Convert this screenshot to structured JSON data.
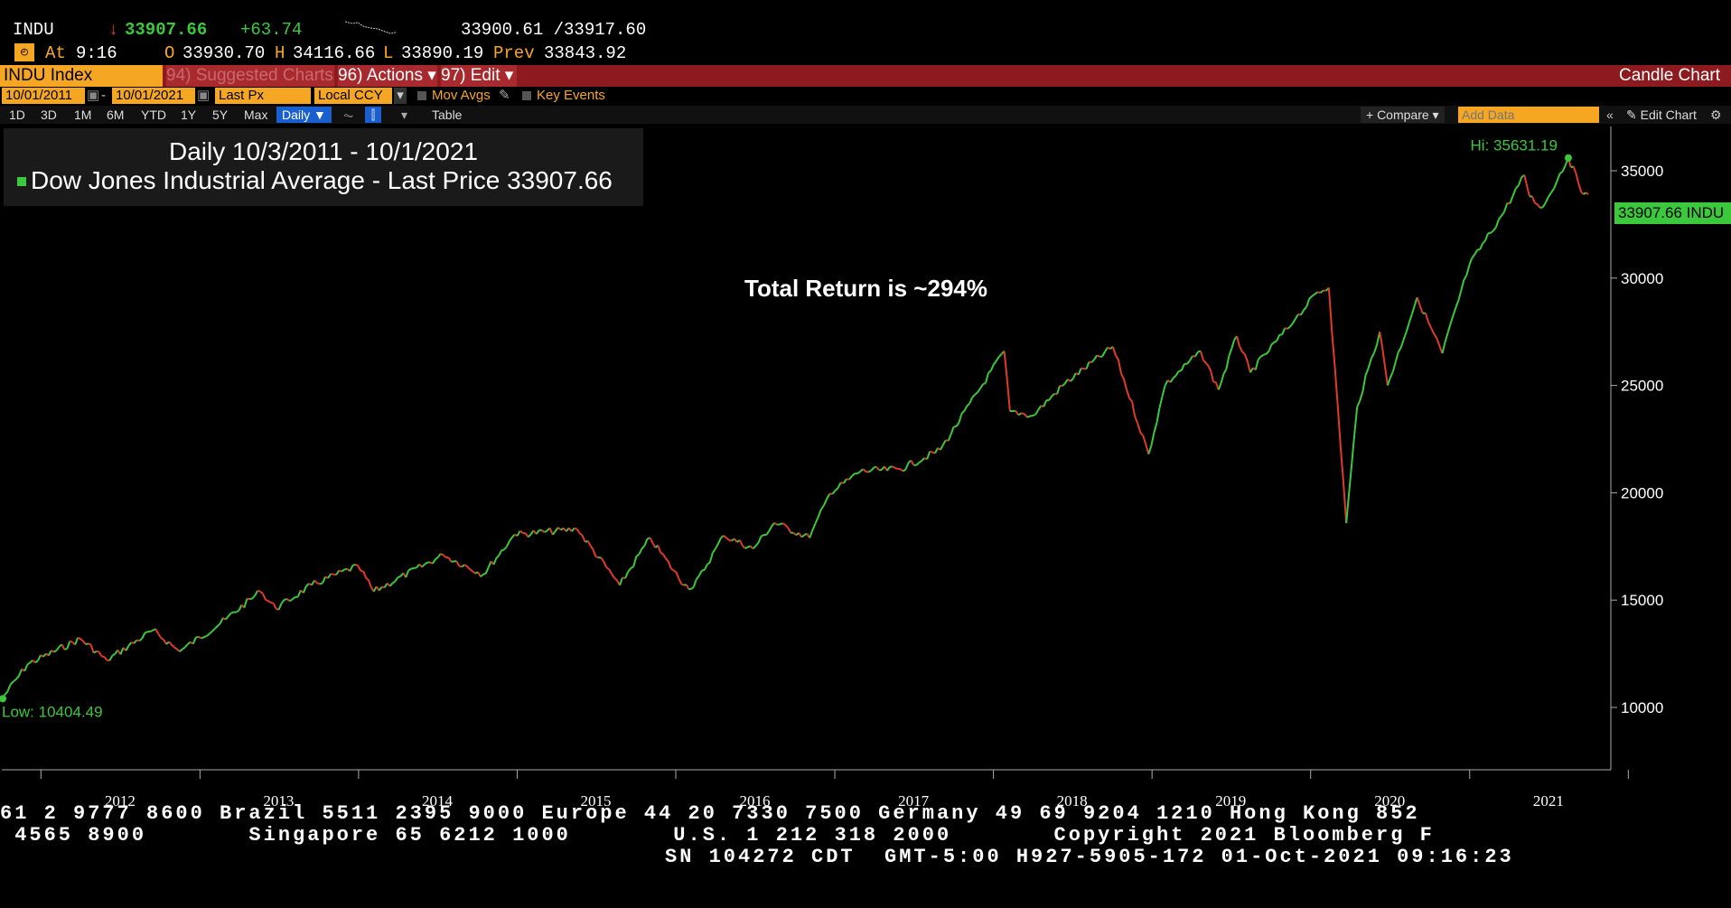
{
  "quote": {
    "ticker": "INDU",
    "last": "33907.66",
    "change": "+63.74",
    "bid_ask": "33900.61 /33917.60",
    "time_label": "At",
    "time": "9:16",
    "open_label": "O",
    "open": "33930.70",
    "high_label": "H",
    "high": "34116.66",
    "low_label": "L",
    "low": "33890.19",
    "prev_label": "Prev",
    "prev": "33843.92"
  },
  "menubar": {
    "security": "INDU Index",
    "suggested": "94) Suggested Charts",
    "actions": "96) Actions ▾",
    "edit": "97) Edit ▾",
    "chart_type": "Candle Chart"
  },
  "settings": {
    "start_date": "10/01/2011",
    "end_date": "10/01/2021",
    "field": "Last Px",
    "currency": "Local CCY",
    "mov_avgs": "Mov Avgs",
    "key_events": "Key Events"
  },
  "periods": {
    "buttons": [
      "1D",
      "3D",
      "1M",
      "6M",
      "YTD",
      "1Y",
      "5Y",
      "Max"
    ],
    "frequency": "Daily ▼",
    "table": "Table",
    "compare": "+ Compare ▾",
    "add_data_placeholder": "Add Data",
    "edit_chart": "Edit Chart"
  },
  "legend": {
    "title": "Daily 10/3/2011 - 10/1/2021",
    "series": "Dow Jones Industrial Average - Last Price 33907.66"
  },
  "annotation": "Total Return is ~294%",
  "colors": {
    "up": "#3cc83c",
    "down": "#e03a2a",
    "accent": "#f5a623",
    "menubar": "#8c1a1f"
  },
  "chart_data": {
    "type": "line",
    "title": "Daily 10/3/2011 - 10/1/2021",
    "series": [
      {
        "name": "Dow Jones Industrial Average - Last Price",
        "x": [
          "2011-10-03",
          "2011-12-01",
          "2012-04-01",
          "2012-06-01",
          "2012-09-15",
          "2012-11-15",
          "2013-03-01",
          "2013-05-20",
          "2013-06-25",
          "2013-09-15",
          "2013-12-31",
          "2014-02-05",
          "2014-07-15",
          "2014-10-15",
          "2014-12-26",
          "2015-05-19",
          "2015-08-25",
          "2015-11-03",
          "2016-01-20",
          "2016-02-11",
          "2016-04-20",
          "2016-06-27",
          "2016-08-15",
          "2016-11-04",
          "2016-12-20",
          "2017-03-01",
          "2017-06-01",
          "2017-09-01",
          "2018-01-26",
          "2018-02-08",
          "2018-04-02",
          "2018-06-15",
          "2018-10-03",
          "2018-12-24",
          "2019-01-31",
          "2019-04-23",
          "2019-06-03",
          "2019-07-15",
          "2019-08-15",
          "2019-11-27",
          "2020-01-17",
          "2020-02-12",
          "2020-03-23",
          "2020-04-17",
          "2020-06-08",
          "2020-06-26",
          "2020-09-02",
          "2020-10-30",
          "2020-12-31",
          "2021-03-15",
          "2021-05-07",
          "2021-05-19",
          "2021-06-18",
          "2021-08-16",
          "2021-09-20",
          "2021-10-01"
        ],
        "values": [
          10404.49,
          12000,
          13200,
          12200,
          13600,
          12600,
          14100,
          15400,
          14600,
          15700,
          16600,
          15400,
          17100,
          16200,
          18050,
          18300,
          15700,
          17900,
          15700,
          15600,
          18000,
          17400,
          18600,
          17900,
          19950,
          21000,
          21100,
          22000,
          26600,
          23800,
          23600,
          25100,
          26800,
          21800,
          25000,
          26600,
          24800,
          27300,
          25600,
          28100,
          29350,
          29550,
          18590,
          24000,
          27500,
          25000,
          29100,
          26500,
          30600,
          32900,
          34800,
          33800,
          33300,
          35600,
          33900,
          33907.66
        ]
      }
    ],
    "xlabel": "",
    "ylabel": "",
    "x_ticks": [
      "2012",
      "2013",
      "2014",
      "2015",
      "2016",
      "2017",
      "2018",
      "2019",
      "2020",
      "2021"
    ],
    "y_ticks": [
      10000,
      15000,
      20000,
      25000,
      30000,
      35000
    ],
    "ylim": [
      8000,
      37000
    ],
    "hi_label": "Hi: 35631.19",
    "low_label": "Low: 10404.49",
    "last_tag": "33907.66 INDU",
    "grid": false
  },
  "footer": {
    "line1": "61 2 9777 8600 Brazil 5511 2395 9000 Europe 44 20 7330 7500 Germany 49 69 9204 1210 Hong Kong 852",
    "line2": " 4565 8900       Singapore 65 6212 1000       U.S. 1 212 318 2000       Copyright 2021 Bloomberg F",
    "line3": "SN 104272 CDT  GMT-5:00 H927-5905-172 01-Oct-2021 09:16:23"
  }
}
